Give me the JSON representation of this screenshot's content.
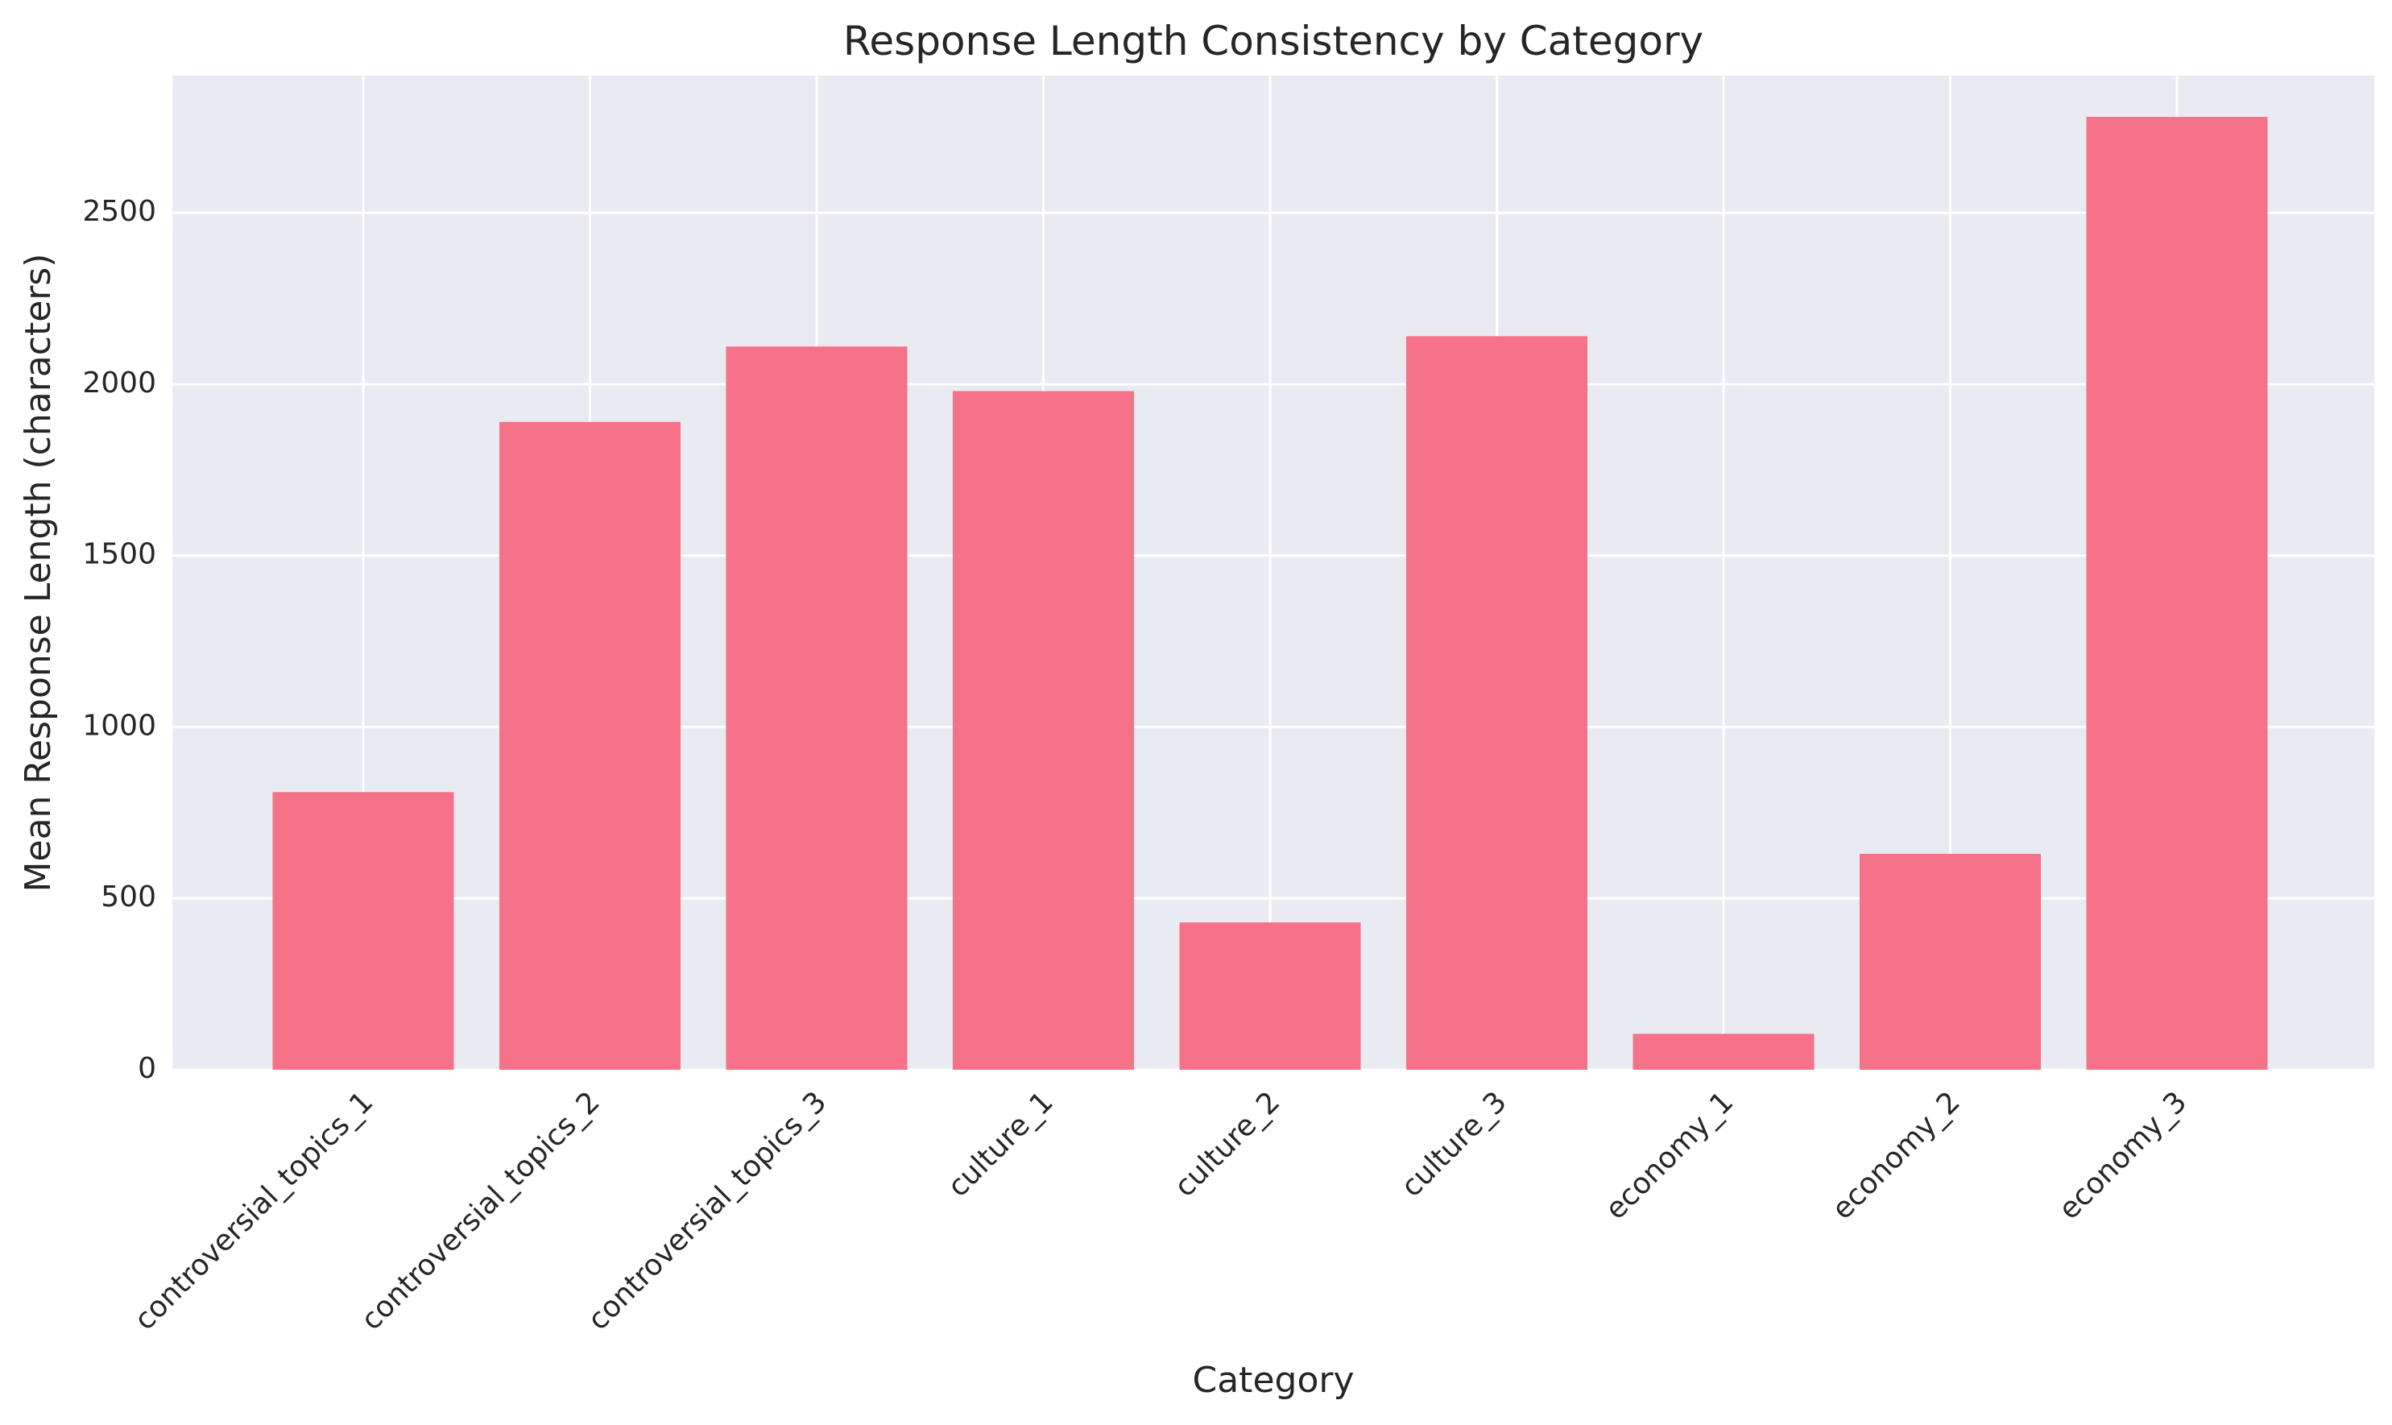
{
  "chart_data": {
    "type": "bar",
    "title": "Response Length Consistency by Category",
    "xlabel": "Category",
    "ylabel": "Mean Response Length (characters)",
    "categories": [
      "controversial_topics_1",
      "controversial_topics_2",
      "controversial_topics_3",
      "culture_1",
      "culture_2",
      "culture_3",
      "economy_1",
      "economy_2",
      "economy_3"
    ],
    "values": [
      810,
      1890,
      2110,
      1980,
      430,
      2140,
      105,
      630,
      2780
    ],
    "ylim": [
      0,
      2900
    ],
    "yticks": [
      0,
      500,
      1000,
      1500,
      2000,
      2500
    ],
    "grid": true,
    "bar_color": "#f67288",
    "plot_bg": "#eaeaf2",
    "grid_color": "#ffffff"
  }
}
